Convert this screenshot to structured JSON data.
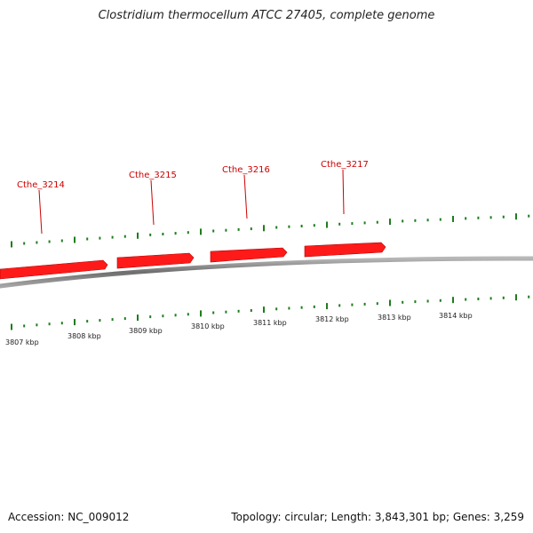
{
  "title": "Clostridium thermocellum ATCC 27405, complete genome",
  "footer": {
    "accession": "Accession: NC_009012",
    "summary": "Topology: circular; Length: 3,843,301 bp; Genes: 3,259"
  },
  "colors": {
    "gene": "#ff1a1a",
    "gene_label": "#cc0000",
    "backbone": "#8c8c8c",
    "tick": "#1e7d1e"
  },
  "genes": [
    {
      "id": "Cthe_3214"
    },
    {
      "id": "Cthe_3215"
    },
    {
      "id": "Cthe_3216"
    },
    {
      "id": "Cthe_3217"
    }
  ],
  "scale": [
    {
      "label": "3807 kbp"
    },
    {
      "label": "3808 kbp"
    },
    {
      "label": "3809 kbp"
    },
    {
      "label": "3810 kbp"
    },
    {
      "label": "3811 kbp"
    },
    {
      "label": "3812 kbp"
    },
    {
      "label": "3813 kbp"
    },
    {
      "label": "3814 kbp"
    }
  ]
}
